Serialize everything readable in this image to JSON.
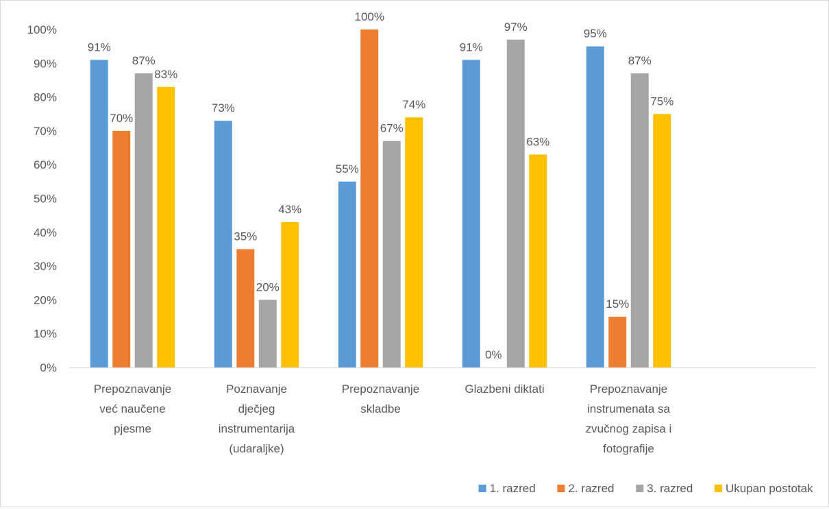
{
  "chart_data": {
    "type": "bar",
    "title": "",
    "xlabel": "",
    "ylabel": "",
    "ylim": [
      0,
      100
    ],
    "y_ticks": [
      "0%",
      "10%",
      "20%",
      "30%",
      "40%",
      "50%",
      "60%",
      "70%",
      "80%",
      "90%",
      "100%"
    ],
    "grid": false,
    "legend_position": "bottom-right",
    "categories": [
      [
        "Prepoznavanje",
        "već naučene",
        "pjesme"
      ],
      [
        "Poznavanje",
        "dječjeg",
        "instrumentarija",
        "(udaraljke)"
      ],
      [
        "Prepoznavanje",
        "skladbe"
      ],
      [
        "Glazbeni diktati"
      ],
      [
        "Prepoznavanje",
        "instrumenata sa",
        "zvučnog zapisa i",
        "fotografije"
      ]
    ],
    "series": [
      {
        "name": "1. razred",
        "color": "#5B9BD5",
        "values": [
          91,
          73,
          55,
          91,
          95
        ]
      },
      {
        "name": "2. razred",
        "color": "#ED7D31",
        "values": [
          70,
          35,
          100,
          0,
          15
        ]
      },
      {
        "name": "3. razred",
        "color": "#A5A5A5",
        "values": [
          87,
          20,
          67,
          97,
          87
        ]
      },
      {
        "name": "Ukupan postotak",
        "color": "#FFC000",
        "values": [
          83,
          43,
          74,
          63,
          75
        ]
      }
    ],
    "value_suffix": "%"
  }
}
